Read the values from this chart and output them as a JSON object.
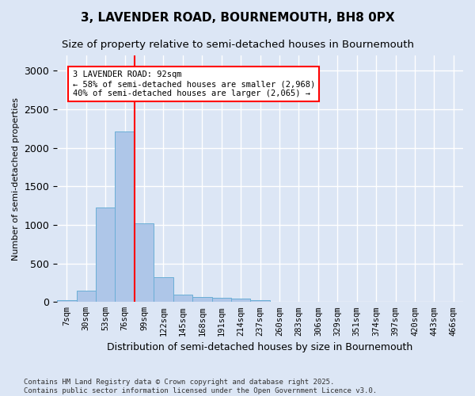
{
  "title": "3, LAVENDER ROAD, BOURNEMOUTH, BH8 0PX",
  "subtitle": "Size of property relative to semi-detached houses in Bournemouth",
  "xlabel": "Distribution of semi-detached houses by size in Bournemouth",
  "ylabel": "Number of semi-detached properties",
  "footnote": "Contains HM Land Registry data © Crown copyright and database right 2025.\nContains public sector information licensed under the Open Government Licence v3.0.",
  "bar_labels": [
    "7sqm",
    "30sqm",
    "53sqm",
    "76sqm",
    "99sqm",
    "122sqm",
    "145sqm",
    "168sqm",
    "191sqm",
    "214sqm",
    "237sqm",
    "260sqm",
    "283sqm",
    "306sqm",
    "329sqm",
    "351sqm",
    "374sqm",
    "397sqm",
    "420sqm",
    "443sqm",
    "466sqm"
  ],
  "bar_values": [
    20,
    150,
    1230,
    2210,
    1020,
    320,
    100,
    60,
    55,
    40,
    25,
    0,
    0,
    0,
    0,
    0,
    0,
    0,
    0,
    0,
    0
  ],
  "bar_color": "#aec6e8",
  "bar_edgecolor": "#6baed6",
  "vline_x_index": 3,
  "vline_color": "red",
  "annotation_text": "3 LAVENDER ROAD: 92sqm\n← 58% of semi-detached houses are smaller (2,968)\n40% of semi-detached houses are larger (2,065) →",
  "annotation_box_color": "white",
  "annotation_box_edgecolor": "red",
  "ylim": [
    0,
    3200
  ],
  "yticks": [
    0,
    500,
    1000,
    1500,
    2000,
    2500,
    3000
  ],
  "bg_color": "#dce6f5",
  "plot_bg_color": "#dce6f5",
  "grid_color": "white",
  "title_fontsize": 11,
  "subtitle_fontsize": 9.5,
  "ylabel_fontsize": 8,
  "xlabel_fontsize": 9,
  "tick_fontsize": 7.5,
  "footnote_fontsize": 6.5
}
